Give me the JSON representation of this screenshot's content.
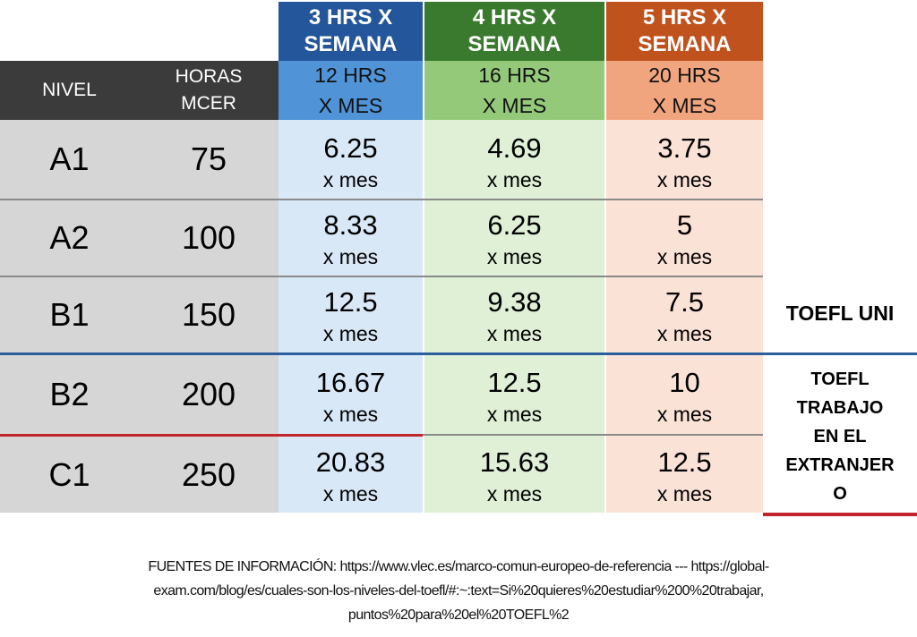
{
  "header": {
    "col_nivel": "NIVEL",
    "col_horas_line1": "HORAS",
    "col_horas_line2": "MCER",
    "plans": [
      {
        "top_line1": "3 HRS X",
        "top_line2": "SEMANA",
        "sub_line1": "12 HRS",
        "sub_line2": "X MES",
        "top_color": "#24569b",
        "sub_color": "#5093d6",
        "body_color": "#d9e8f7"
      },
      {
        "top_line1": "4 HRS X",
        "top_line2": "SEMANA",
        "sub_line1": "16 HRS",
        "sub_line2": "X MES",
        "top_color": "#3a7a2e",
        "sub_color": "#94c97a",
        "body_color": "#dff0d6"
      },
      {
        "top_line1": "5 HRS X",
        "top_line2": "SEMANA",
        "sub_line1": "20 HRS",
        "sub_line2": "X MES",
        "top_color": "#c0521d",
        "sub_color": "#f1a57e",
        "body_color": "#fbe2d6"
      }
    ]
  },
  "unit_label": "x mes",
  "rows": [
    {
      "level": "A1",
      "hours": "75",
      "values": [
        "6.25",
        "4.69",
        "3.75"
      ]
    },
    {
      "level": "A2",
      "hours": "100",
      "values": [
        "8.33",
        "6.25",
        "5"
      ]
    },
    {
      "level": "B1",
      "hours": "150",
      "values": [
        "12.5",
        "9.38",
        "7.5"
      ]
    },
    {
      "level": "B2",
      "hours": "200",
      "values": [
        "16.67",
        "12.5",
        "10"
      ]
    },
    {
      "level": "C1",
      "hours": "250",
      "values": [
        "20.83",
        "15.63",
        "12.5"
      ]
    }
  ],
  "side_labels": {
    "toefl_uni": "TOEFL UNI",
    "toefl_trabajo_lines": [
      "TOEFL",
      "TRABAJO",
      "EN EL",
      "EXTRANJER",
      "O"
    ]
  },
  "colors": {
    "dark_header": "#3b3b3b",
    "left_body": "#d6d6d6",
    "row_divider": "#8a8a8a",
    "b2_line": "#2c5e9e",
    "c1_line": "#c0262b"
  },
  "footer": {
    "line1": "FUENTES DE INFORMACIÓN: https://www.vlec.es/marco-comun-europeo-de-referencia --- https://global-",
    "line2": "exam.com/blog/es/cuales-son-los-niveles-del-toefl/#:~:text=Si%20quieres%20estudiar%200%20trabajar,",
    "line3": "puntos%20para%20el%20TOEFL%2"
  }
}
